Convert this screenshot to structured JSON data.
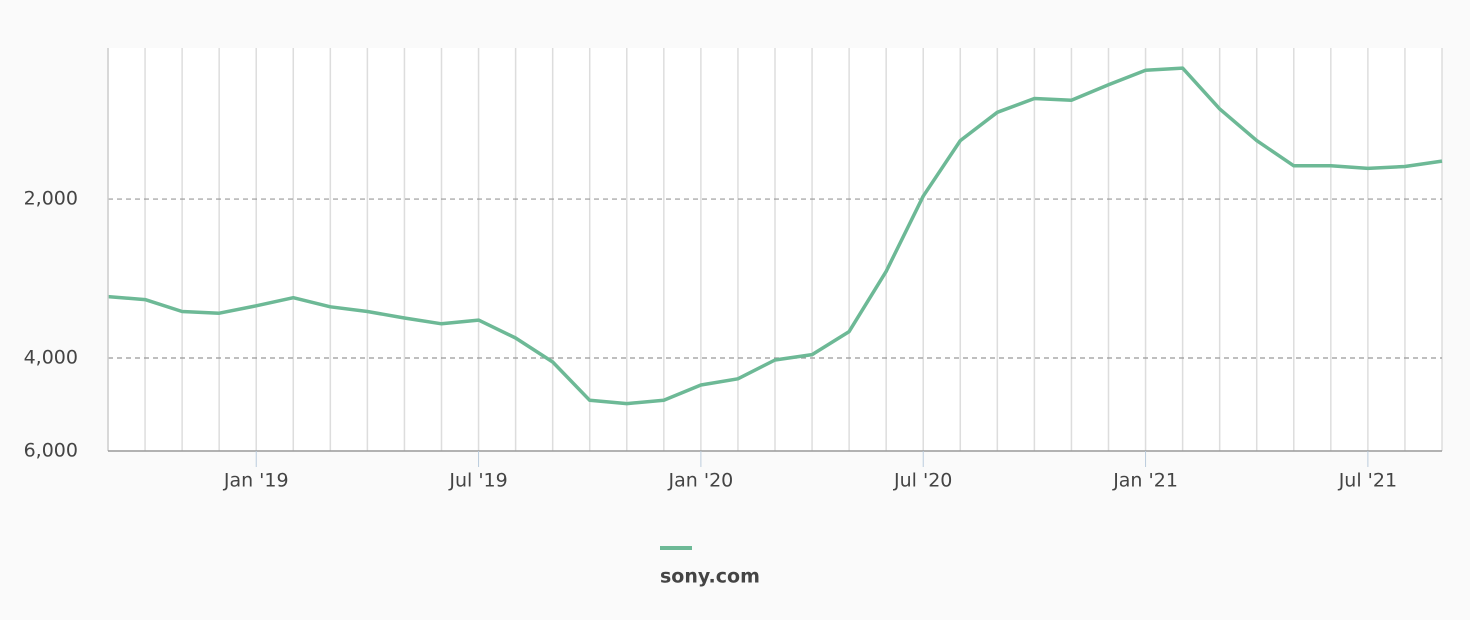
{
  "chart_data": {
    "type": "line",
    "x": [
      "2018-09",
      "2018-10",
      "2018-11",
      "2018-12",
      "2019-01",
      "2019-02",
      "2019-03",
      "2019-04",
      "2019-05",
      "2019-06",
      "2019-07",
      "2019-08",
      "2019-09",
      "2019-10",
      "2019-11",
      "2019-12",
      "2020-01",
      "2020-02",
      "2020-03",
      "2020-04",
      "2020-05",
      "2020-06",
      "2020-07",
      "2020-08",
      "2020-09",
      "2020-10",
      "2020-11",
      "2020-12",
      "2021-01",
      "2021-02",
      "2021-03",
      "2021-04",
      "2021-05",
      "2021-06",
      "2021-07",
      "2021-08",
      "2021-09"
    ],
    "series": [
      {
        "name": "sony.com",
        "color": "#6db996",
        "values": [
          3060,
          3100,
          3265,
          3290,
          3185,
          3075,
          3200,
          3265,
          3360,
          3445,
          3390,
          3665,
          4070,
          4810,
          4880,
          4810,
          4500,
          4380,
          4035,
          3940,
          3565,
          2740,
          1975,
          1550,
          1370,
          1290,
          1300,
          1215,
          1140,
          1130,
          1350,
          1550,
          1730,
          1730,
          1750,
          1735,
          1695
        ]
      }
    ],
    "xlim": [
      "2018-09",
      "2021-09"
    ],
    "xticks": [
      {
        "value": "2019-01",
        "label": "Jan '19"
      },
      {
        "value": "2019-07",
        "label": "Jul '19"
      },
      {
        "value": "2020-01",
        "label": "Jan '20"
      },
      {
        "value": "2020-07",
        "label": "Jul '20"
      },
      {
        "value": "2021-01",
        "label": "Jan '21"
      },
      {
        "value": "2021-07",
        "label": "Jul '21"
      }
    ],
    "ylim": [
      6000,
      1035
    ],
    "yticks": [
      {
        "value": 2000,
        "label": "2,000"
      },
      {
        "value": 4000,
        "label": "4,000"
      },
      {
        "value": 6000,
        "label": "6,000"
      }
    ],
    "log_scale": true,
    "grid": true,
    "legend": "bottom"
  }
}
